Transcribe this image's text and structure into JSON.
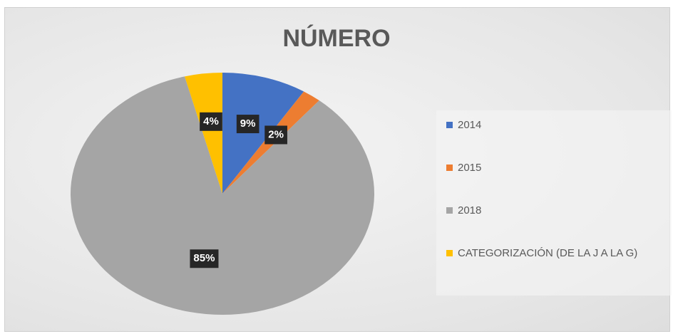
{
  "chart_data": {
    "type": "pie",
    "title": "NÚMERO",
    "categories": [
      "2014",
      "2015",
      "2018",
      "CATEGORIZACIÓN (DE LA J A LA G)"
    ],
    "values": [
      9,
      2,
      85,
      4
    ],
    "value_labels": [
      "9%",
      "2%",
      "85%",
      "4%"
    ],
    "colors": [
      "#4472c4",
      "#ed7d31",
      "#a5a5a5",
      "#ffc000"
    ],
    "legend": "right"
  }
}
